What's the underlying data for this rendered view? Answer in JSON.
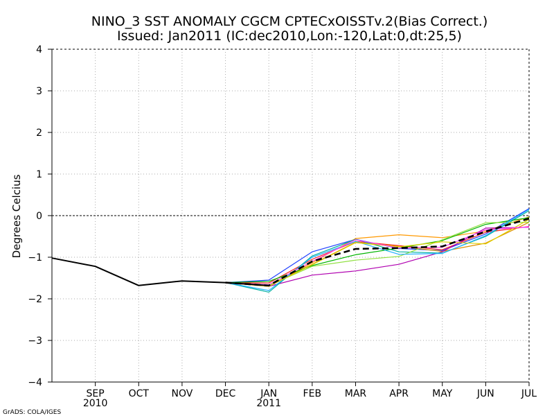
{
  "chart_data": {
    "type": "line",
    "title": "NINO_3 SST ANOMALY CGCM CPTECxOISSTv.2(Bias Correct.)",
    "subtitle": "Issued:  Jan2011 (IC:dec2010,Lon:-120,Lat:0,dt:25,5)",
    "xlabel": "",
    "ylabel": "Degrees Celcius",
    "credit": "GrADS: COLA/IGES",
    "ylim": [
      -4,
      4
    ],
    "yticks": [
      "4",
      "3",
      "2",
      "1",
      "0",
      "−1",
      "−2",
      "−3",
      "−4"
    ],
    "ytick_values": [
      4,
      3,
      2,
      1,
      0,
      -1,
      -2,
      -3,
      -4
    ],
    "x_range": [
      0,
      11
    ],
    "x_ticks": [
      {
        "x": 1,
        "label": "SEP",
        "sublabel": "2010"
      },
      {
        "x": 2,
        "label": "OCT",
        "sublabel": ""
      },
      {
        "x": 3,
        "label": "NOV",
        "sublabel": ""
      },
      {
        "x": 4,
        "label": "DEC",
        "sublabel": ""
      },
      {
        "x": 5,
        "label": "JAN",
        "sublabel": "2011"
      },
      {
        "x": 6,
        "label": "FEB",
        "sublabel": ""
      },
      {
        "x": 7,
        "label": "MAR",
        "sublabel": ""
      },
      {
        "x": 8,
        "label": "APR",
        "sublabel": ""
      },
      {
        "x": 9,
        "label": "MAY",
        "sublabel": ""
      },
      {
        "x": 10,
        "label": "JUN",
        "sublabel": ""
      },
      {
        "x": 11,
        "label": "JUL",
        "sublabel": ""
      }
    ],
    "grid": true,
    "zero_line": true,
    "observed": {
      "name": "observed",
      "color": "#000000",
      "x": [
        0,
        1,
        2,
        3,
        4,
        5
      ],
      "values": [
        -1.02,
        -1.22,
        -1.68,
        -1.57,
        -1.61,
        -1.68
      ]
    },
    "members": [
      {
        "name": "member-blue",
        "color": "#2040ff",
        "x": [
          4,
          5,
          6,
          7,
          8,
          9,
          10,
          11
        ],
        "values": [
          -1.61,
          -1.55,
          -0.87,
          -0.57,
          -0.79,
          -0.84,
          -0.44,
          0.17
        ]
      },
      {
        "name": "member-orange",
        "color": "#ff9900",
        "x": [
          4,
          5,
          6,
          7,
          8,
          9,
          10,
          11
        ],
        "values": [
          -1.61,
          -1.7,
          -1.13,
          -0.55,
          -0.46,
          -0.53,
          -0.37,
          -0.03
        ]
      },
      {
        "name": "member-red",
        "color": "#ff2020",
        "x": [
          4,
          5,
          6,
          7,
          8,
          9,
          10,
          11
        ],
        "values": [
          -1.61,
          -1.62,
          -1.05,
          -0.62,
          -0.72,
          -0.82,
          -0.4,
          -0.26
        ]
      },
      {
        "name": "member-darkorange",
        "color": "#e09000",
        "x": [
          4,
          5,
          6,
          7,
          8,
          9,
          10,
          11
        ],
        "values": [
          -1.61,
          -1.68,
          -1.17,
          -0.64,
          -0.74,
          -0.86,
          -0.66,
          -0.16
        ]
      },
      {
        "name": "member-purple",
        "color": "#b000b0",
        "x": [
          4,
          5,
          6,
          7,
          8,
          9,
          10,
          11
        ],
        "values": [
          -1.61,
          -1.7,
          -1.43,
          -1.33,
          -1.17,
          -0.87,
          -0.3,
          -0.28
        ]
      },
      {
        "name": "member-teal",
        "color": "#00b0a0",
        "x": [
          4,
          5,
          6,
          7,
          8,
          9,
          10,
          11
        ],
        "values": [
          -1.61,
          -1.84,
          -0.97,
          -0.57,
          -0.87,
          -0.9,
          -0.5,
          0.12
        ]
      },
      {
        "name": "member-green",
        "color": "#00b400",
        "x": [
          4,
          5,
          6,
          7,
          8,
          9,
          10,
          11
        ],
        "values": [
          -1.61,
          -1.58,
          -1.2,
          -0.94,
          -0.78,
          -0.6,
          -0.21,
          -0.05
        ]
      },
      {
        "name": "member-lightgreen",
        "color": "#90e040",
        "x": [
          4,
          5,
          6,
          7,
          8,
          9,
          10,
          11
        ],
        "values": [
          -1.61,
          -1.68,
          -1.22,
          -1.07,
          -0.98,
          -0.58,
          -0.17,
          -0.16
        ]
      },
      {
        "name": "member-cyan",
        "color": "#20b0ff",
        "x": [
          4,
          5,
          6,
          7,
          8,
          9,
          10,
          11
        ],
        "values": [
          -1.61,
          -1.8,
          -1.0,
          -0.62,
          -0.93,
          -0.91,
          -0.48,
          0.15
        ]
      },
      {
        "name": "member-yellow",
        "color": "#e0d000",
        "x": [
          4,
          5,
          6,
          7,
          8,
          9,
          10,
          11
        ],
        "values": [
          -1.61,
          -1.7,
          -1.18,
          -0.65,
          -0.75,
          -0.63,
          -0.68,
          -0.09
        ]
      },
      {
        "name": "member-magenta",
        "color": "#ff40ff",
        "x": [
          4,
          5,
          6,
          7,
          8,
          9,
          10,
          11
        ],
        "values": [
          -1.61,
          -1.66,
          -1.1,
          -0.58,
          -0.78,
          -0.76,
          -0.34,
          -0.27
        ]
      }
    ],
    "ensemble_mean": {
      "name": "ensemble-mean",
      "color": "#000000",
      "style": "dashed",
      "x": [
        4,
        5,
        6,
        7,
        8,
        9,
        10,
        11
      ],
      "values": [
        -1.61,
        -1.68,
        -1.1,
        -0.8,
        -0.78,
        -0.74,
        -0.38,
        -0.07
      ]
    }
  }
}
